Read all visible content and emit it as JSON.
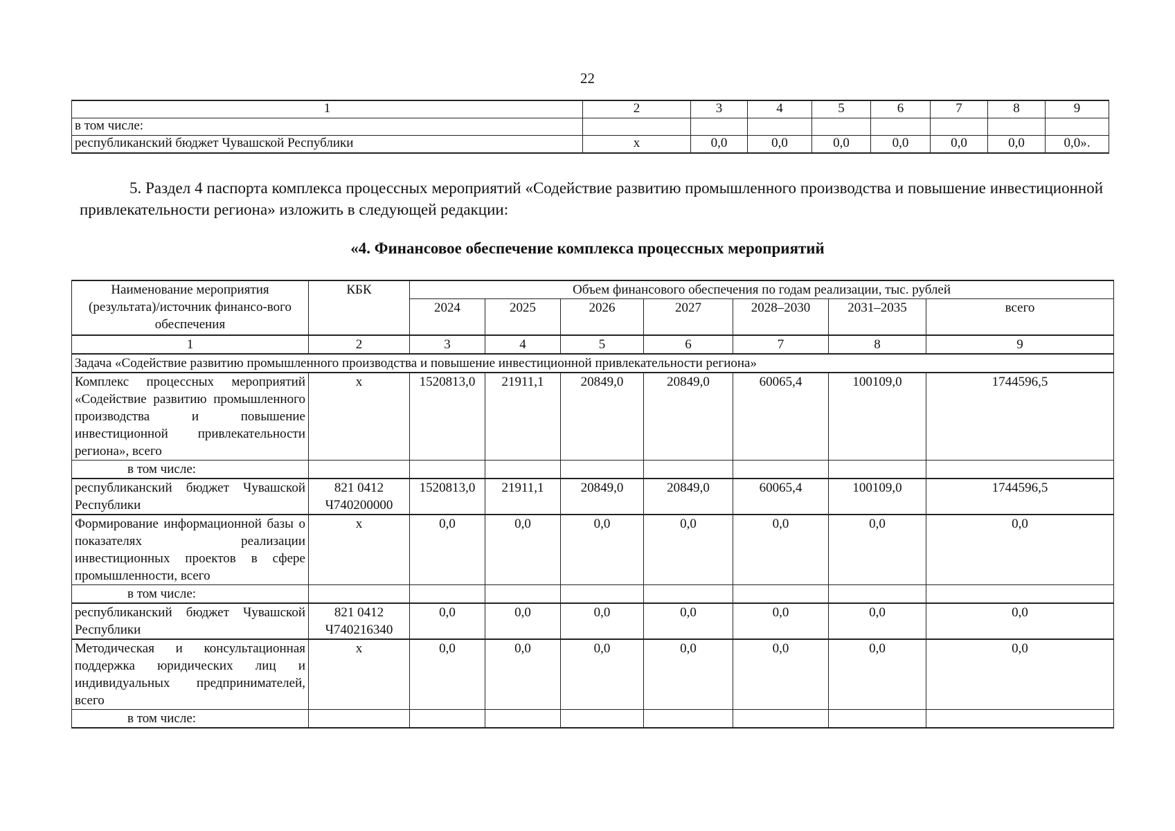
{
  "page_number": "22",
  "top_table": {
    "col_numbers": [
      "1",
      "2",
      "3",
      "4",
      "5",
      "6",
      "7",
      "8",
      "9"
    ],
    "rows": [
      [
        "в том числе:",
        "",
        "",
        "",
        "",
        "",
        "",
        "",
        ""
      ],
      [
        "республиканский бюджет Чувашской Республики",
        "x",
        "0,0",
        "0,0",
        "0,0",
        "0,0",
        "0,0",
        "0,0",
        "0,0»."
      ]
    ]
  },
  "paragraph": "5. Раздел 4 паспорта комплекса процессных мероприятий «Содействие развитию промышленного производства и повышение инвестиционной привлекательности региона» изложить в следующей редакции:",
  "section_heading": "«4. Финансовое обеспечение комплекса процессных мероприятий",
  "finance_table": {
    "header": {
      "name": "Наименование мероприятия (результата)/источник финансо-вого обеспечения",
      "kbk": "КБК",
      "volume": "Объем финансового обеспечения по годам реализации, тыс. рублей",
      "years": [
        "2024",
        "2025",
        "2026",
        "2027",
        "2028–2030",
        "2031–2035",
        "всего"
      ]
    },
    "col_numbers": [
      "1",
      "2",
      "3",
      "4",
      "5",
      "6",
      "7",
      "8",
      "9"
    ],
    "task": "Задача «Содействие развитию промышленного производства и повышение инвестиционной привлекательности  региона»",
    "rows": [
      {
        "name": "Комплекс процессных мероприятий «Содействие развитию промышленного производства и повышение инвестиционной привлекательности региона», всего",
        "kbk": "x",
        "values": [
          "1520813,0",
          "21911,1",
          "20849,0",
          "20849,0",
          "60065,4",
          "100109,0",
          "1744596,5"
        ]
      },
      {
        "name": "в том числе:",
        "kbk": "",
        "values": [
          "",
          "",
          "",
          "",
          "",
          "",
          ""
        ],
        "sub": true
      },
      {
        "name": "республиканский бюджет Чувашской Республики",
        "kbk": "821 0412 Ч740200000",
        "values": [
          "1520813,0",
          "21911,1",
          "20849,0",
          "20849,0",
          "60065,4",
          "100109,0",
          "1744596,5"
        ]
      },
      {
        "name": "Формирование информационной базы о показателях реализации инвестиционных проектов в сфере промышленности, всего",
        "kbk": "x",
        "values": [
          "0,0",
          "0,0",
          "0,0",
          "0,0",
          "0,0",
          "0,0",
          "0,0"
        ]
      },
      {
        "name": "в том числе:",
        "kbk": "",
        "values": [
          "",
          "",
          "",
          "",
          "",
          "",
          ""
        ],
        "sub": true
      },
      {
        "name": "республиканский бюджет Чувашской Республики",
        "kbk": "821 0412 Ч740216340",
        "values": [
          "0,0",
          "0,0",
          "0,0",
          "0,0",
          "0,0",
          "0,0",
          "0,0"
        ]
      },
      {
        "name": "Методическая и консультационная поддержка юридических лиц и индивидуальных предпринимателей, всего",
        "kbk": "x",
        "values": [
          "0,0",
          "0,0",
          "0,0",
          "0,0",
          "0,0",
          "0,0",
          "0,0"
        ]
      },
      {
        "name": "в том числе:",
        "kbk": "",
        "values": [
          "",
          "",
          "",
          "",
          "",
          "",
          ""
        ],
        "sub": true
      }
    ]
  }
}
